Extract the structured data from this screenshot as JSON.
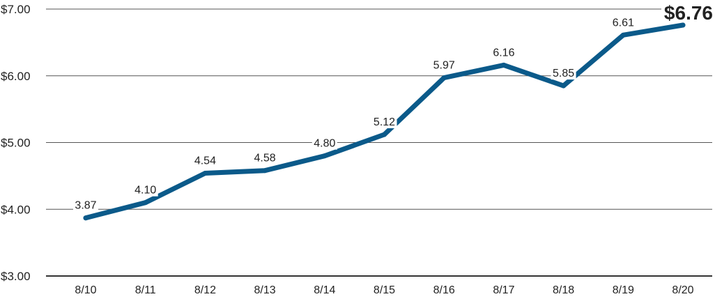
{
  "chart_data": {
    "type": "line",
    "categories": [
      "8/10",
      "8/11",
      "8/12",
      "8/13",
      "8/14",
      "8/15",
      "8/16",
      "8/17",
      "8/18",
      "8/19",
      "8/20"
    ],
    "values": [
      3.87,
      4.1,
      4.54,
      4.58,
      4.8,
      5.12,
      5.97,
      6.16,
      5.85,
      6.61,
      6.76
    ],
    "data_labels": [
      "3.87",
      "4.10",
      "4.54",
      "4.58",
      "4.80",
      "5.12",
      "5.97",
      "6.16",
      "5.85",
      "6.61",
      "$6.76"
    ],
    "ytick_labels": [
      "$3.00",
      "$4.00",
      "$5.00",
      "$6.00",
      "$7.00"
    ],
    "ytick_values": [
      3,
      4,
      5,
      6,
      7
    ],
    "ylim": [
      3,
      7
    ],
    "grid": true,
    "line_color": "#0b5a8a",
    "title": "",
    "xlabel": "",
    "ylabel": ""
  }
}
